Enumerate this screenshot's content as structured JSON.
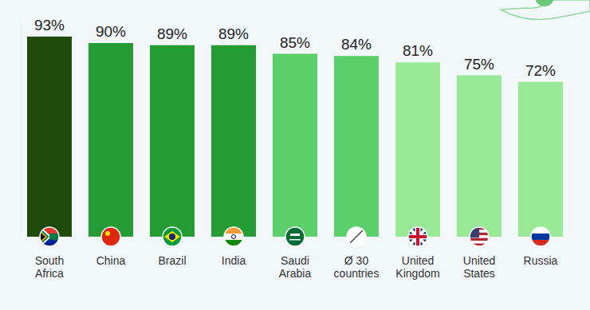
{
  "chart_data": {
    "type": "bar",
    "categories": [
      "South Africa",
      "China",
      "Brazil",
      "India",
      "Saudi Arabia",
      "Ø 30 countries",
      "United Kingdom",
      "United States",
      "Russia"
    ],
    "values": [
      93,
      90,
      89,
      89,
      85,
      84,
      81,
      75,
      72
    ],
    "value_labels": [
      "93%",
      "90%",
      "89%",
      "89%",
      "85%",
      "84%",
      "81%",
      "75%",
      "72%"
    ],
    "colors": [
      "#1f4a0a",
      "#249c33",
      "#249c33",
      "#249c33",
      "#5bcf6a",
      "#5bcf6a",
      "#98e896",
      "#98e896",
      "#98e896"
    ],
    "ylim": [
      0,
      100
    ],
    "data_labels": true,
    "tick_labels": "x",
    "grid": false
  }
}
